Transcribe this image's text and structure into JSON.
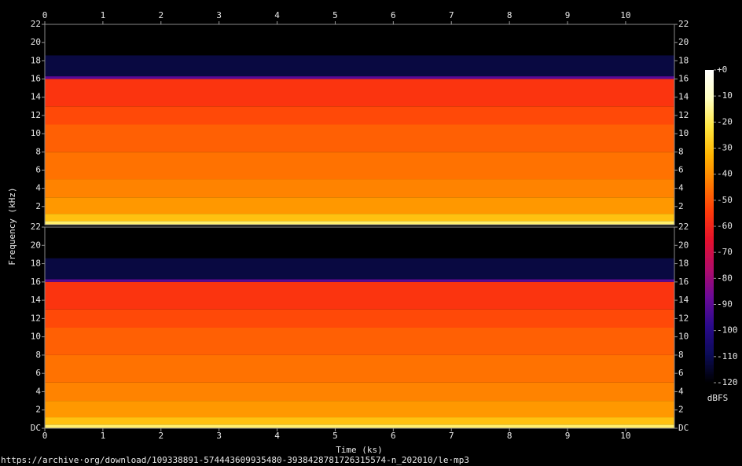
{
  "chart_data": {
    "type": "spectrogram",
    "x_label": "Time (ks)",
    "y_label": "Frequency (kHz)",
    "colorbar_label": "dBFS",
    "source": "https://archive·org/download/109338891-574443609935480-3938428781726315574-n_202010/le·mp3",
    "xlim": [
      0,
      10.84
    ],
    "xticks": [
      0,
      1,
      2,
      3,
      4,
      5,
      6,
      7,
      8,
      9,
      10
    ],
    "ylim": [
      0,
      22
    ],
    "freq_bins": [
      0,
      0.4,
      1.2,
      3,
      5,
      8,
      11,
      13,
      16,
      16.3,
      18.6,
      22
    ],
    "clim": [
      -120,
      0
    ],
    "cticks": [
      {
        "value": 0,
        "label": "+0"
      },
      -10,
      -20,
      -30,
      -40,
      -50,
      -60,
      -70,
      -80,
      -90,
      -100,
      -110,
      -120
    ],
    "colormap": [
      "#000000",
      "#0c0c58",
      "#2a0a8c",
      "#6a0a98",
      "#b00c6a",
      "#e4102e",
      "#ff3a0a",
      "#ff7a00",
      "#ffb400",
      "#ffe640",
      "#ffffc0",
      "#ffffff"
    ],
    "channels": [
      {
        "yticks": [
          2,
          4,
          6,
          8,
          10,
          12,
          14,
          16,
          18,
          20,
          22
        ],
        "levels": [
          -18,
          -30,
          -38,
          -42,
          -45,
          -48,
          -52,
          -56,
          -90,
          -112,
          -120
        ]
      },
      {
        "yticks": [
          {
            "value": 0,
            "label": "DC"
          },
          2,
          4,
          6,
          8,
          10,
          12,
          14,
          16,
          18,
          20,
          22
        ],
        "levels": [
          -18,
          -30,
          -38,
          -42,
          -45,
          -48,
          -52,
          -56,
          -90,
          -112,
          -120
        ]
      }
    ]
  }
}
